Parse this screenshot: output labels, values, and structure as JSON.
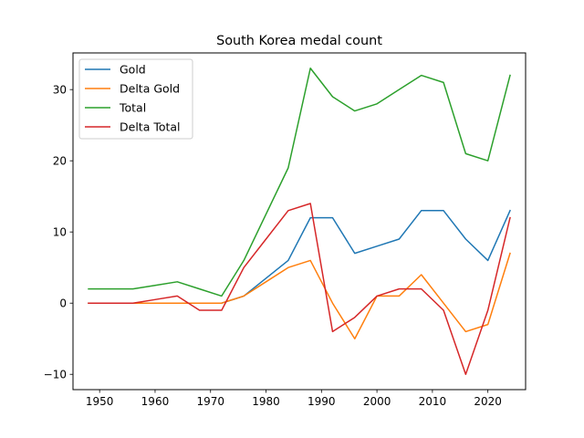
{
  "chart_data": {
    "type": "line",
    "title": "South Korea medal count",
    "xlabel": "",
    "ylabel": "",
    "xlim": [
      1945.2,
      2026.8
    ],
    "ylim": [
      -12.15,
      35.15
    ],
    "xticks": [
      1950,
      1960,
      1970,
      1980,
      1990,
      2000,
      2010,
      2020
    ],
    "xtick_labels": [
      "1950",
      "1960",
      "1970",
      "1980",
      "1990",
      "2000",
      "2010",
      "2020"
    ],
    "yticks": [
      -10,
      0,
      10,
      20,
      30
    ],
    "ytick_labels": [
      "−10",
      "0",
      "10",
      "20",
      "30"
    ],
    "grid": false,
    "legend_position": "top-left",
    "x": [
      1948,
      1952,
      1956,
      1960,
      1964,
      1968,
      1972,
      1976,
      1980,
      1984,
      1988,
      1992,
      1996,
      2000,
      2004,
      2008,
      2012,
      2016,
      2020,
      2024
    ],
    "series": [
      {
        "name": "Gold",
        "color": "#1f77b4",
        "values": [
          0,
          0,
          0,
          0,
          0,
          0,
          0,
          1,
          3.5,
          6,
          12,
          12,
          7,
          8,
          9,
          13,
          13,
          9,
          6,
          13
        ]
      },
      {
        "name": "Delta Gold",
        "color": "#ff7f0e",
        "values": [
          0,
          0,
          0,
          0,
          0,
          0,
          0,
          1,
          3,
          5,
          6,
          0,
          -5,
          1,
          1,
          4,
          0,
          -4,
          -3,
          7
        ]
      },
      {
        "name": "Total",
        "color": "#2ca02c",
        "values": [
          2,
          2,
          2,
          2.5,
          3,
          2,
          1,
          6,
          12.5,
          19,
          33,
          29,
          27,
          28,
          30,
          32,
          31,
          21,
          20,
          32
        ]
      },
      {
        "name": "Delta Total",
        "color": "#d62728",
        "values": [
          0,
          0,
          0,
          0.5,
          1,
          -1,
          -1,
          5,
          9,
          13,
          14,
          -4,
          -2,
          1,
          2,
          2,
          -1,
          -10,
          -1,
          12
        ]
      }
    ]
  }
}
